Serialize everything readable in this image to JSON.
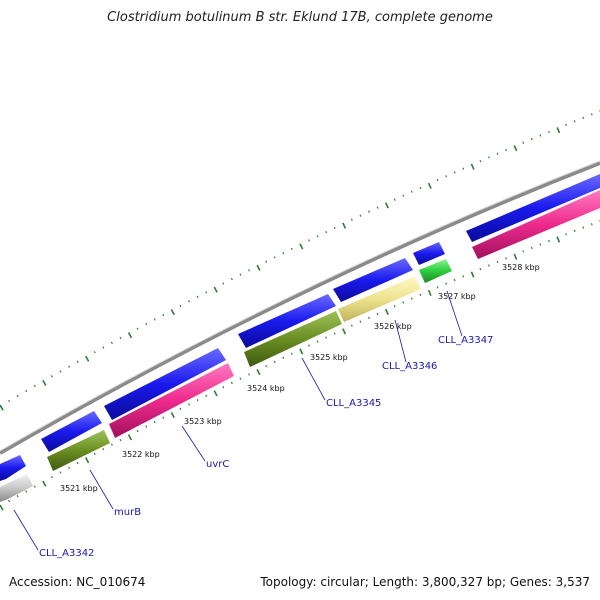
{
  "title": "Clostridium botulinum B str. Eklund 17B, complete genome",
  "accession_text": "Accession: NC_010674",
  "summary_text": "Topology: circular; Length: 3,800,327 bp; Genes: 3,537",
  "scale_labels": [
    "3521 kbp",
    "3522 kbp",
    "3523 kbp",
    "3524 kbp",
    "3525 kbp",
    "3526 kbp",
    "3527 kbp",
    "3528 kbp"
  ],
  "gene_labels": [
    "CLL_A3342",
    "murB",
    "uvrC",
    "CLL_A3345",
    "CLL_A3346",
    "CLL_A3347"
  ],
  "colors": {
    "backbone": "#8a8a8a",
    "cds": "#1a1aee",
    "magenta": "#ee2a8c",
    "olive": "#6b8e23",
    "khaki": "#eee38e",
    "green": "#2ecc40",
    "grey": "#c8c8c8",
    "tick": "#2e7d32",
    "label": "#1a1aa8"
  }
}
